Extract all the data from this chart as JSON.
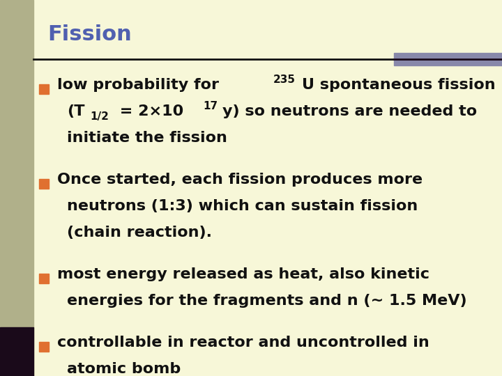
{
  "title": "Fission",
  "title_color": "#5060b0",
  "bg_color": "#f7f7d8",
  "left_bar_color": "#b0b08a",
  "left_bar_dark": "#1a0a1a",
  "sep_line_color": "#111111",
  "sep_bar_color": "#8888aa",
  "bullet_color": "#e07030",
  "text_color": "#111111",
  "bullet2_line1": "Once started, each fission produces more",
  "bullet2_line2": "neutrons (1:3) which can sustain fission",
  "bullet2_line3": "(chain reaction).",
  "bullet3_line1": "most energy released as heat, also kinetic",
  "bullet3_line2": "energies for the fragments and n (∼ 1.5 MeV)",
  "bullet4_line1": "controllable in reactor and uncontrolled in",
  "bullet4_line2": "atomic bomb",
  "font_size_title": 22,
  "font_size_text": 16,
  "font_size_super": 11
}
